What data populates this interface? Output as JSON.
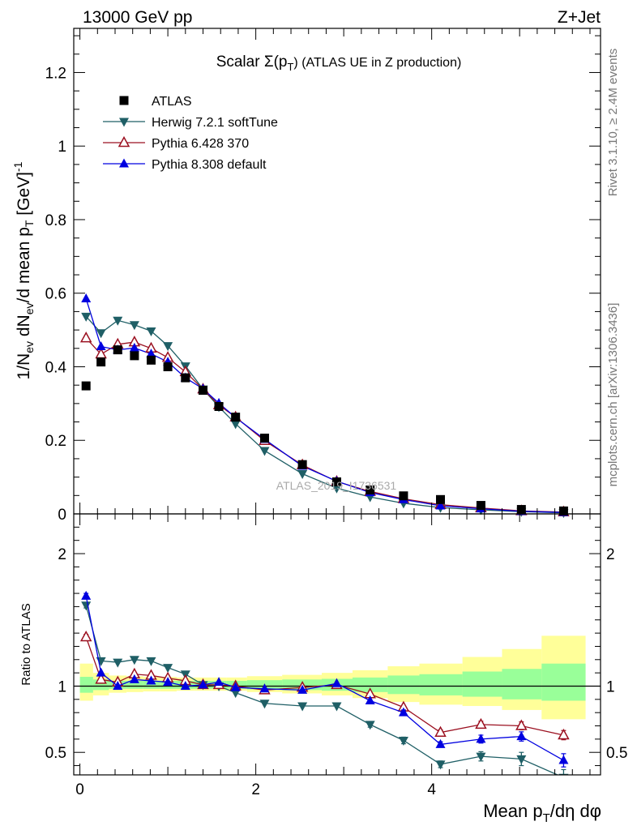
{
  "header": {
    "left": "13000 GeV pp",
    "right": "Z+Jet"
  },
  "side_labels": {
    "rivet": "Rivet 3.1.10, ≥ 2.4M events",
    "mcplots": "mcplots.cern.ch [arXiv:1306.3436]"
  },
  "chart_data": [
    {
      "type": "scatter",
      "title": "Scalar Σ(pT) (ATLAS UE in Z production)",
      "title_parts": {
        "main": "Scalar Σ(p",
        "sub": "T",
        "tail": ") (ATLAS UE in Z production)"
      },
      "watermark": "ATLAS_2019_I1736531",
      "ylabel": "1/Nev dNev/d mean pT [GeV]-1",
      "ylim": [
        0,
        1.32
      ],
      "xlim": [
        -0.07,
        5.92
      ],
      "yticks": [
        0,
        0.2,
        0.4,
        0.6,
        0.8,
        1,
        1.2
      ],
      "ytick_labels": [
        "0",
        "0.2",
        "0.4",
        "0.6",
        "0.8",
        "1",
        "1.2"
      ],
      "legend_position": "top-left",
      "x": [
        0.07,
        0.24,
        0.43,
        0.62,
        0.81,
        1.0,
        1.2,
        1.4,
        1.58,
        1.77,
        2.1,
        2.53,
        2.92,
        3.3,
        3.68,
        4.1,
        4.56,
        5.02,
        5.5
      ],
      "series": [
        {
          "name": "ATLAS",
          "color": "#000000",
          "marker": "square",
          "values": [
            0.348,
            0.413,
            0.446,
            0.43,
            0.418,
            0.4,
            0.37,
            0.336,
            0.292,
            0.263,
            0.206,
            0.134,
            0.087,
            0.065,
            0.049,
            0.039,
            0.023,
            0.012,
            0.008
          ]
        },
        {
          "name": "Herwig 7.2.1 softTune",
          "color": "#1f5f66",
          "marker": "triangle-down",
          "values": [
            0.537,
            0.492,
            0.526,
            0.514,
            0.497,
            0.457,
            0.402,
            0.339,
            0.291,
            0.245,
            0.172,
            0.109,
            0.07,
            0.046,
            0.029,
            0.017,
            0.011,
            0.006,
            0.003
          ]
        },
        {
          "name": "Pythia 6.428 370",
          "color": "#9b1020",
          "marker": "triangle-open",
          "values": [
            0.478,
            0.434,
            0.461,
            0.467,
            0.45,
            0.425,
            0.386,
            0.339,
            0.296,
            0.263,
            0.199,
            0.133,
            0.088,
            0.061,
            0.041,
            0.025,
            0.016,
            0.008,
            0.005
          ]
        },
        {
          "name": "Pythia 8.308 default",
          "color": "#0000e0",
          "marker": "triangle",
          "values": [
            0.585,
            0.455,
            0.446,
            0.451,
            0.435,
            0.413,
            0.37,
            0.34,
            0.301,
            0.262,
            0.203,
            0.13,
            0.089,
            0.058,
            0.039,
            0.022,
            0.014,
            0.007,
            0.004
          ]
        }
      ]
    },
    {
      "type": "line",
      "ylabel": "Ratio to ATLAS",
      "xlabel": "Mean pT/dη dφ",
      "xlabel_parts": {
        "main": "Mean p",
        "sub": "T",
        "tail": "/dη dφ"
      },
      "ylim": [
        0.33,
        2.3
      ],
      "xlim": [
        -0.07,
        5.92
      ],
      "xticks": [
        0,
        2,
        4
      ],
      "xtick_labels": [
        "0",
        "2",
        "4"
      ],
      "yticks": [
        0.5,
        1,
        2
      ],
      "ytick_labels": [
        "0.5",
        "1",
        "2"
      ],
      "reference_line": 1,
      "bands": {
        "edges": [
          0,
          0.15,
          0.33,
          0.53,
          0.72,
          0.91,
          1.1,
          1.3,
          1.5,
          1.67,
          1.9,
          2.3,
          2.75,
          3.1,
          3.5,
          3.86,
          4.35,
          4.8,
          5.25,
          5.75
        ],
        "inner": [
          [
            0.95,
            1.07
          ],
          [
            0.97,
            1.05
          ],
          [
            0.98,
            1.04
          ],
          [
            0.98,
            1.04
          ],
          [
            0.98,
            1.04
          ],
          [
            0.98,
            1.04
          ],
          [
            0.98,
            1.04
          ],
          [
            0.98,
            1.04
          ],
          [
            0.98,
            1.04
          ],
          [
            0.98,
            1.04
          ],
          [
            0.975,
            1.045
          ],
          [
            0.97,
            1.05
          ],
          [
            0.965,
            1.055
          ],
          [
            0.955,
            1.065
          ],
          [
            0.94,
            1.08
          ],
          [
            0.93,
            1.09
          ],
          [
            0.92,
            1.11
          ],
          [
            0.9,
            1.13
          ],
          [
            0.89,
            1.17
          ]
        ],
        "outer": [
          [
            0.89,
            1.17
          ],
          [
            0.93,
            1.1
          ],
          [
            0.95,
            1.08
          ],
          [
            0.955,
            1.075
          ],
          [
            0.96,
            1.07
          ],
          [
            0.96,
            1.07
          ],
          [
            0.965,
            1.065
          ],
          [
            0.965,
            1.065
          ],
          [
            0.965,
            1.065
          ],
          [
            0.965,
            1.065
          ],
          [
            0.955,
            1.075
          ],
          [
            0.945,
            1.085
          ],
          [
            0.93,
            1.1
          ],
          [
            0.91,
            1.12
          ],
          [
            0.88,
            1.15
          ],
          [
            0.86,
            1.17
          ],
          [
            0.85,
            1.22
          ],
          [
            0.82,
            1.28
          ],
          [
            0.75,
            1.38
          ]
        ],
        "inner_color": "#99ff99",
        "outer_color": "#ffff99"
      },
      "series": [
        {
          "name": "Herwig 7.2.1 softTune",
          "color": "#1f5f66",
          "marker": "triangle-down",
          "values": [
            1.61,
            1.19,
            1.18,
            1.2,
            1.19,
            1.14,
            1.09,
            1.01,
            1.0,
            0.95,
            0.87,
            0.85,
            0.85,
            0.71,
            0.59,
            0.41,
            0.47,
            0.45,
            0.31
          ],
          "errors": [
            0.02,
            0.01,
            0.01,
            0.01,
            0.01,
            0.01,
            0.01,
            0.01,
            0.01,
            0.01,
            0.01,
            0.01,
            0.01,
            0.02,
            0.025,
            0.025,
            0.035,
            0.05,
            0.06
          ]
        },
        {
          "name": "Pythia 6.428 370",
          "color": "#9b1020",
          "marker": "triangle-open",
          "values": [
            1.37,
            1.05,
            1.03,
            1.09,
            1.08,
            1.06,
            1.04,
            1.01,
            1.01,
            1.0,
            0.97,
            0.99,
            1.01,
            0.94,
            0.84,
            0.65,
            0.71,
            0.7,
            0.63
          ],
          "errors": [
            0.02,
            0.01,
            0.01,
            0.01,
            0.01,
            0.01,
            0.01,
            0.01,
            0.01,
            0.01,
            0.01,
            0.01,
            0.01,
            0.01,
            0.015,
            0.02,
            0.025,
            0.03,
            0.035
          ]
        },
        {
          "name": "Pythia 8.308 default",
          "color": "#0000e0",
          "marker": "triangle",
          "values": [
            1.68,
            1.1,
            1.0,
            1.05,
            1.04,
            1.03,
            1.0,
            1.01,
            1.03,
            0.99,
            0.98,
            0.97,
            1.02,
            0.89,
            0.8,
            0.56,
            0.6,
            0.62,
            0.44
          ],
          "errors": [
            0.02,
            0.01,
            0.01,
            0.01,
            0.01,
            0.01,
            0.01,
            0.01,
            0.01,
            0.01,
            0.01,
            0.01,
            0.01,
            0.015,
            0.02,
            0.02,
            0.03,
            0.035,
            0.05
          ]
        }
      ]
    }
  ]
}
